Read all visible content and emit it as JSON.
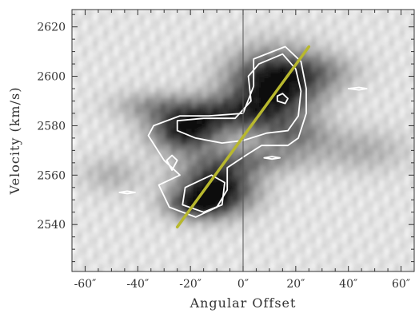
{
  "chart_data": {
    "type": "heatmap",
    "title": "",
    "xlabel": "Angular Offset",
    "ylabel": "Velocity (km/s)",
    "xlim": [
      -65,
      65
    ],
    "ylim": [
      2521,
      2627
    ],
    "x_ticks": [
      {
        "value": -60,
        "label": "-60″"
      },
      {
        "value": -40,
        "label": "-40″"
      },
      {
        "value": -20,
        "label": "-20″"
      },
      {
        "value": 0,
        "label": "0″"
      },
      {
        "value": 20,
        "label": "20″"
      },
      {
        "value": 40,
        "label": "40″"
      },
      {
        "value": 60,
        "label": "60″"
      }
    ],
    "y_ticks": [
      {
        "value": 2540,
        "label": "2540"
      },
      {
        "value": 2560,
        "label": "2560"
      },
      {
        "value": 2580,
        "label": "2580"
      },
      {
        "value": 2600,
        "label": "2600"
      },
      {
        "value": 2620,
        "label": "2620"
      }
    ],
    "colormap": "grayscale (white = low, black = high)",
    "intensity_blobs": [
      {
        "x": 12,
        "y": 2597,
        "sx": 12,
        "sy": 9,
        "peak": 0.95
      },
      {
        "x": -5,
        "y": 2585,
        "sx": 14,
        "sy": 5,
        "peak": 0.55
      },
      {
        "x": -22,
        "y": 2578,
        "sx": 9,
        "sy": 6,
        "peak": 0.8
      },
      {
        "x": -10,
        "y": 2555,
        "sx": 10,
        "sy": 7,
        "peak": 0.9
      },
      {
        "x": -18,
        "y": 2548,
        "sx": 8,
        "sy": 4,
        "peak": 0.55
      },
      {
        "x": 3,
        "y": 2566,
        "sx": 14,
        "sy": 4,
        "peak": 0.35
      },
      {
        "x": 18,
        "y": 2576,
        "sx": 10,
        "sy": 5,
        "peak": 0.4
      },
      {
        "x": -35,
        "y": 2588,
        "sx": 10,
        "sy": 4,
        "peak": 0.28
      },
      {
        "x": 30,
        "y": 2602,
        "sx": 10,
        "sy": 5,
        "peak": 0.25
      },
      {
        "x": 45,
        "y": 2570,
        "sx": 12,
        "sy": 6,
        "peak": 0.22
      },
      {
        "x": -50,
        "y": 2560,
        "sx": 8,
        "sy": 5,
        "peak": 0.2
      }
    ],
    "vertical_reference_line": {
      "x": 0,
      "color": "#555555"
    },
    "fit_line": {
      "x": [
        -25,
        25
      ],
      "y": [
        2539,
        2612
      ],
      "color": "#b8b82e"
    },
    "contours": [
      {
        "points": [
          [
            4,
            2607
          ],
          [
            16,
            2612
          ],
          [
            22,
            2606
          ],
          [
            24,
            2595
          ],
          [
            24,
            2585
          ],
          [
            21,
            2575
          ],
          [
            17,
            2572
          ],
          [
            7,
            2572
          ],
          [
            1,
            2568
          ],
          [
            -6,
            2563
          ],
          [
            -6,
            2554
          ],
          [
            -10,
            2547
          ],
          [
            -18,
            2543
          ],
          [
            -28,
            2547
          ],
          [
            -32,
            2556
          ],
          [
            -24,
            2560
          ],
          [
            -30,
            2566
          ],
          [
            -36,
            2576
          ],
          [
            -34,
            2580
          ],
          [
            -24,
            2584
          ],
          [
            -13,
            2584
          ],
          [
            0,
            2585
          ],
          [
            4,
            2596
          ]
        ]
      },
      {
        "points": [
          [
            6,
            2605
          ],
          [
            15,
            2609
          ],
          [
            20,
            2603
          ],
          [
            22,
            2594
          ],
          [
            21,
            2584
          ],
          [
            17,
            2578
          ],
          [
            9,
            2577
          ],
          [
            0,
            2574
          ],
          [
            -8,
            2573
          ],
          [
            -18,
            2575
          ],
          [
            -25,
            2578
          ],
          [
            -25,
            2582
          ],
          [
            -15,
            2583
          ],
          [
            -3,
            2583
          ],
          [
            3,
            2590
          ],
          [
            2,
            2600
          ]
        ]
      },
      {
        "points": [
          [
            -22,
            2555
          ],
          [
            -12,
            2560
          ],
          [
            -7,
            2557
          ],
          [
            -8,
            2548
          ],
          [
            -15,
            2545
          ],
          [
            -23,
            2548
          ]
        ]
      },
      {
        "points": [
          [
            13,
            2590
          ],
          [
            16,
            2589
          ],
          [
            17,
            2591
          ],
          [
            15,
            2593
          ],
          [
            13,
            2592
          ]
        ]
      },
      {
        "points": [
          [
            -29,
            2566
          ],
          [
            -27,
            2568
          ],
          [
            -25,
            2566
          ],
          [
            -27,
            2562
          ]
        ]
      },
      {
        "points": [
          [
            8,
            2567
          ],
          [
            11,
            2567.5
          ],
          [
            14,
            2567
          ],
          [
            11,
            2566.5
          ]
        ]
      },
      {
        "points": [
          [
            -47,
            2553
          ],
          [
            -44,
            2553.5
          ],
          [
            -41,
            2553
          ],
          [
            -44,
            2552.5
          ]
        ]
      },
      {
        "points": [
          [
            40,
            2595
          ],
          [
            44,
            2595.5
          ],
          [
            47,
            2595
          ],
          [
            44,
            2594.5
          ]
        ]
      }
    ]
  }
}
